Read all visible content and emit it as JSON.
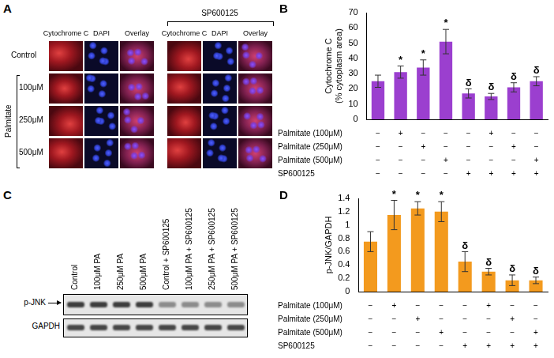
{
  "panel_a": {
    "label": "A",
    "bracket_label": "SP600125",
    "columns": [
      "Cytochrome C",
      "DAPI",
      "Overlay",
      "Cytochrome C",
      "DAPI",
      "Overlay"
    ],
    "group_label": "Palmitate",
    "rows": [
      "Control",
      "100μM",
      "250μM",
      "500μM"
    ]
  },
  "panel_c": {
    "label": "C",
    "lanes": [
      "Control",
      "100μM PA",
      "250μM PA",
      "500μM PA",
      "Control + SP600125",
      "100μM PA + SP600125",
      "250μM PA + SP600125",
      "500μM PA + SP600125"
    ],
    "rows": [
      "p-JNK",
      "GAPDH"
    ]
  },
  "chart_data": [
    {
      "type": "bar",
      "panel_label": "B",
      "y_label": [
        "Cytochrome C",
        "(% cytoplasm area)"
      ],
      "categories": [
        null,
        null,
        null,
        null,
        null,
        null,
        null,
        null
      ],
      "values": [
        25,
        31,
        34,
        51,
        17,
        15,
        21,
        25
      ],
      "errors": [
        4,
        4,
        5,
        8,
        3,
        2,
        3,
        3
      ],
      "annotations": [
        "",
        "*",
        "*",
        "*",
        "δ",
        "δ",
        "δ",
        "δ"
      ],
      "color": "#9b3fcf",
      "ylim": [
        0,
        70
      ],
      "yticks": [
        0,
        10,
        20,
        30,
        40,
        50,
        60,
        70
      ],
      "grid": false,
      "treatments": [
        {
          "name": "Palmitate (100μM)",
          "marks": [
            "−",
            "+",
            "−",
            "−",
            "−",
            "+",
            "−",
            "−"
          ]
        },
        {
          "name": "Palmitate (250μM)",
          "marks": [
            "−",
            "−",
            "+",
            "−",
            "−",
            "−",
            "+",
            "−"
          ]
        },
        {
          "name": "Palmitate (500μM)",
          "marks": [
            "−",
            "−",
            "−",
            "+",
            "−",
            "−",
            "−",
            "+"
          ]
        },
        {
          "name": "SP600125",
          "marks": [
            "−",
            "−",
            "−",
            "−",
            "+",
            "+",
            "+",
            "+"
          ]
        }
      ]
    },
    {
      "type": "bar",
      "panel_label": "D",
      "y_label": "p-JNK/GAPDH",
      "categories": [
        null,
        null,
        null,
        null,
        null,
        null,
        null,
        null
      ],
      "values": [
        0.75,
        1.15,
        1.25,
        1.2,
        0.45,
        0.3,
        0.17,
        0.17
      ],
      "errors": [
        0.15,
        0.22,
        0.1,
        0.15,
        0.15,
        0.05,
        0.08,
        0.05
      ],
      "annotations": [
        "",
        "*",
        "*",
        "*",
        "δ",
        "δ",
        "δ",
        "δ"
      ],
      "color": "#f39a1e",
      "ylim": [
        0,
        1.4
      ],
      "yticks": [
        0,
        0.2,
        0.4,
        0.6,
        0.8,
        1,
        1.2,
        1.4
      ],
      "grid": false,
      "treatments": [
        {
          "name": "Palmitate (100μM)",
          "marks": [
            "−",
            "+",
            "−",
            "−",
            "−",
            "+",
            "−",
            "−"
          ]
        },
        {
          "name": "Palmitate (250μM)",
          "marks": [
            "−",
            "−",
            "+",
            "−",
            "−",
            "−",
            "+",
            "−"
          ]
        },
        {
          "name": "Palmitate (500μM)",
          "marks": [
            "−",
            "−",
            "−",
            "+",
            "−",
            "−",
            "−",
            "+"
          ]
        },
        {
          "name": "SP600125",
          "marks": [
            "−",
            "−",
            "−",
            "−",
            "+",
            "+",
            "+",
            "+"
          ]
        }
      ]
    }
  ]
}
